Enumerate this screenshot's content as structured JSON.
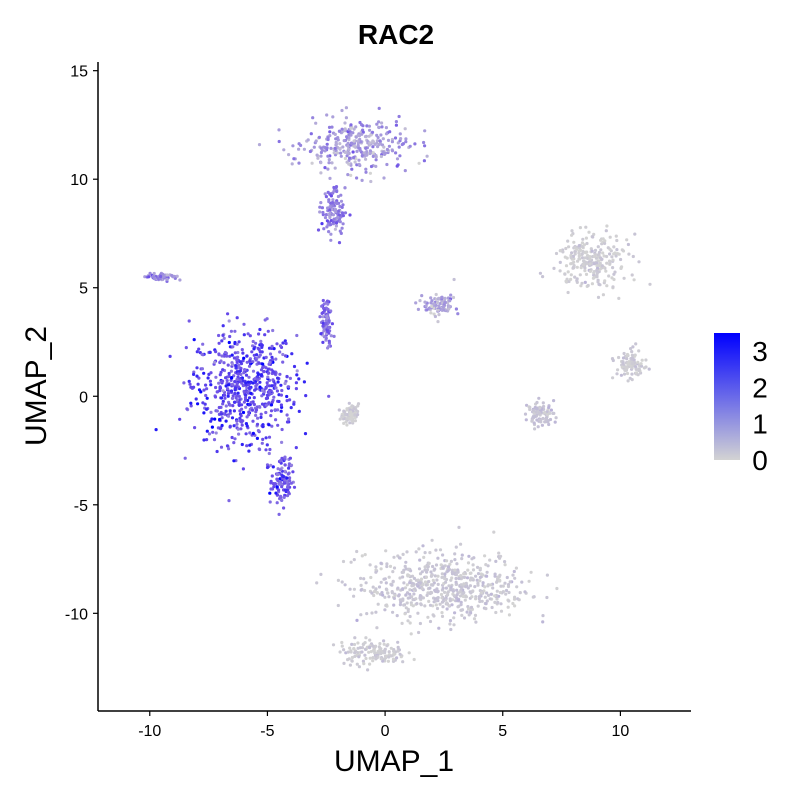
{
  "chart_data": {
    "type": "scatter",
    "title": "RAC2",
    "xlabel": "UMAP_1",
    "ylabel": "UMAP_2",
    "xlim": [
      -12.2,
      13.0
    ],
    "ylim": [
      -14.5,
      15.4
    ],
    "x_ticks": [
      -10,
      -5,
      0,
      5,
      10
    ],
    "y_ticks": [
      -10,
      -5,
      0,
      5,
      10,
      15
    ],
    "grid": false,
    "legend": {
      "placement": "right",
      "type": "colorbar",
      "ticks": [
        0,
        1,
        2,
        3
      ],
      "range": [
        0,
        3.5
      ],
      "low_color": "#d3d3d3",
      "high_color": "#0000ff"
    },
    "clusters": [
      {
        "name_hint": "left large cluster",
        "center": [
          -6.0,
          0.5
        ],
        "spread": [
          2.0,
          2.4
        ],
        "mean_expression": 2.4
      },
      {
        "name_hint": "top cluster",
        "center": [
          -1.2,
          11.5
        ],
        "spread": [
          2.0,
          1.1
        ],
        "mean_expression": 1.0
      },
      {
        "name_hint": "top stem",
        "center": [
          -2.2,
          8.5
        ],
        "spread": [
          0.45,
          1.0
        ],
        "mean_expression": 1.4
      },
      {
        "name_hint": "bottom cluster",
        "center": [
          2.5,
          -8.8
        ],
        "spread": [
          3.2,
          1.4
        ],
        "mean_expression": 0.2
      },
      {
        "name_hint": "bottom tail",
        "center": [
          -0.5,
          -11.8
        ],
        "spread": [
          1.3,
          0.5
        ],
        "mean_expression": 0.1
      },
      {
        "name_hint": "right top cluster",
        "center": [
          8.8,
          6.2
        ],
        "spread": [
          1.4,
          1.1
        ],
        "mean_expression": 0.1
      },
      {
        "name_hint": "right small cluster",
        "center": [
          10.4,
          1.5
        ],
        "spread": [
          0.55,
          0.6
        ],
        "mean_expression": 0.1
      },
      {
        "name_hint": "middle small cluster",
        "center": [
          2.3,
          4.2
        ],
        "spread": [
          0.6,
          0.5
        ],
        "mean_expression": 0.8
      },
      {
        "name_hint": "lower-left arm",
        "center": [
          -4.4,
          -3.9
        ],
        "spread": [
          0.45,
          1.0
        ],
        "mean_expression": 2.2
      },
      {
        "name_hint": "middle right small",
        "center": [
          6.6,
          -0.8
        ],
        "spread": [
          0.5,
          0.5
        ],
        "mean_expression": 0.3
      },
      {
        "name_hint": "grey lobe",
        "center": [
          -1.5,
          -0.8
        ],
        "spread": [
          0.35,
          0.35
        ],
        "mean_expression": 0.1
      },
      {
        "name_hint": "far left streak",
        "center": [
          -9.5,
          5.5
        ],
        "spread": [
          0.6,
          0.15
        ],
        "mean_expression": 1.5
      },
      {
        "name_hint": "mid stalk",
        "center": [
          -2.5,
          3.5
        ],
        "spread": [
          0.2,
          1.0
        ],
        "mean_expression": 1.8
      }
    ]
  }
}
